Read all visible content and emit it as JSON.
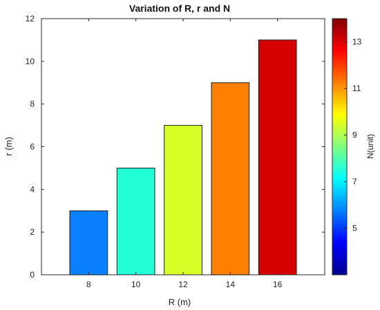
{
  "chart_data": {
    "type": "bar",
    "title": "Variation of R, r and N",
    "xlabel": "R (m)",
    "ylabel": "r (m)",
    "categories": [
      "8",
      "10",
      "12",
      "14",
      "16"
    ],
    "x": [
      8,
      10,
      12,
      14,
      16
    ],
    "values": [
      3,
      5,
      7,
      9,
      11
    ],
    "color_values": [
      6,
      8,
      10,
      12,
      14
    ],
    "xlim": [
      6,
      18
    ],
    "ylim": [
      0,
      12
    ],
    "yticks": [
      "0",
      "2",
      "4",
      "6",
      "8",
      "10",
      "12"
    ],
    "grid": false,
    "colorbar": {
      "label": "N(unit)",
      "colormap": "jet",
      "range": [
        3,
        14
      ],
      "ticks": [
        "5",
        "7",
        "9",
        "11",
        "13"
      ],
      "tick_values": [
        5,
        7,
        9,
        11,
        13
      ]
    },
    "bar_colors": [
      "#0a80ff",
      "#22ffd6",
      "#d6ff28",
      "#ff8000",
      "#d60000"
    ]
  }
}
